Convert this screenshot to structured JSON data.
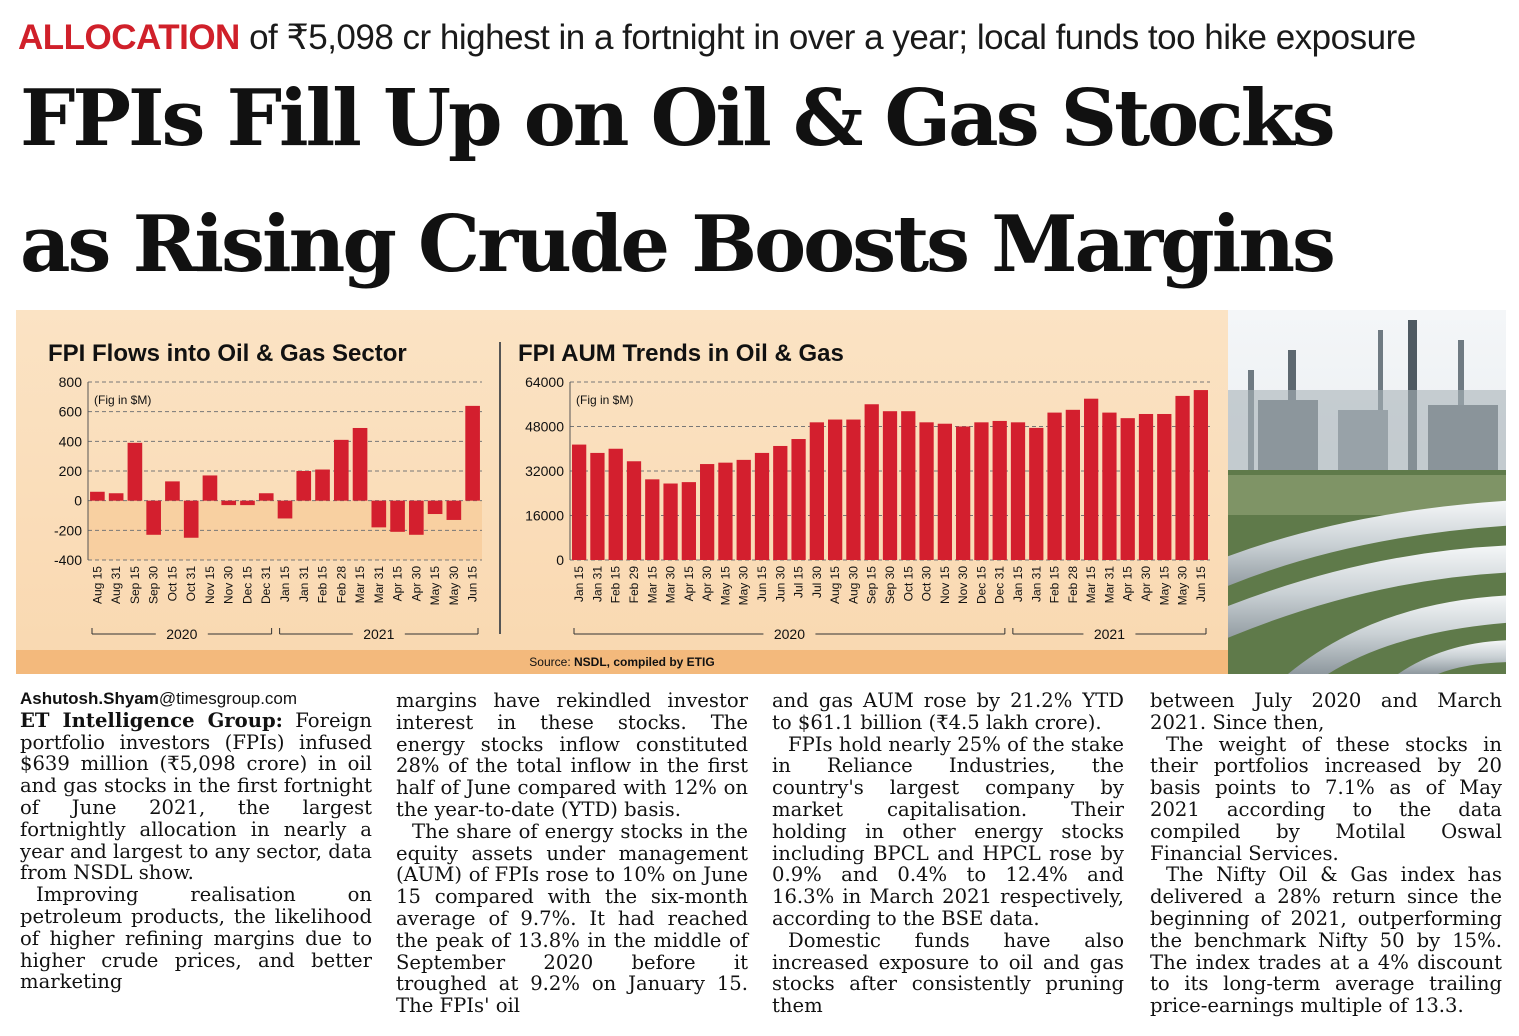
{
  "kicker": {
    "keyword": "ALLOCATION",
    "text": "of ₹5,098 cr highest in a fortnight in over a year; local funds too hike exposure"
  },
  "headline": {
    "line1": "FPIs Fill Up on Oil & Gas Stocks",
    "line2": "as Rising Crude Boosts Margins"
  },
  "colors": {
    "bar": "#d31f2e",
    "kicker": "#d0202a",
    "panel": "#fbe3c4",
    "source_bar": "#f3b97c"
  },
  "chart_data": [
    {
      "type": "bar",
      "title": "FPI Flows into Oil & Gas Sector",
      "unit_note": "(Fig in $M)",
      "categories": [
        "Aug 15",
        "Aug 31",
        "Sep 15",
        "Sep 30",
        "Oct 15",
        "Oct 31",
        "Nov 15",
        "Nov 30",
        "Dec 15",
        "Dec 31",
        "Jan 15",
        "Jan 31",
        "Feb 15",
        "Feb 28",
        "Mar 15",
        "Mar 31",
        "Apr 15",
        "Apr 30",
        "May 15",
        "May 30",
        "Jun 15"
      ],
      "values": [
        60,
        50,
        390,
        -230,
        130,
        -250,
        170,
        -30,
        -30,
        50,
        -120,
        200,
        210,
        410,
        490,
        -180,
        -210,
        -230,
        -90,
        -130,
        639
      ],
      "ylim": [
        -400,
        800
      ],
      "yticks": [
        800,
        600,
        400,
        200,
        0,
        -200,
        -400
      ],
      "ytick_labels": [
        "800",
        "600",
        "400",
        "200",
        "0",
        "-200",
        "-400"
      ],
      "year_groups": [
        {
          "label": "2020",
          "from": 0,
          "to": 9
        },
        {
          "label": "2021",
          "from": 10,
          "to": 20
        }
      ]
    },
    {
      "type": "bar",
      "title": "FPI AUM Trends in Oil & Gas",
      "unit_note": "(Fig in $M)",
      "categories": [
        "Jan 15",
        "Jan 31",
        "Feb 15",
        "Feb 29",
        "Mar 15",
        "Mar 30",
        "Apr 15",
        "Apr 30",
        "May 15",
        "May 30",
        "Jun 15",
        "Jun 30",
        "Jul 15",
        "Jul 30",
        "Aug 15",
        "Aug 30",
        "Sep 15",
        "Sep 30",
        "Oct 15",
        "Oct 30",
        "Nov 15",
        "Nov 30",
        "Dec 15",
        "Dec 31",
        "Jan 15",
        "Jan 31",
        "Feb 15",
        "Feb 28",
        "Mar 15",
        "Mar 31",
        "Apr 15",
        "Apr 30",
        "May 15",
        "May 30",
        "Jun 15"
      ],
      "values": [
        41500,
        38500,
        40000,
        35500,
        29000,
        27500,
        28000,
        34500,
        35000,
        36000,
        38500,
        41000,
        43500,
        49500,
        50500,
        50500,
        56000,
        53500,
        53500,
        49500,
        49000,
        48000,
        49500,
        50000,
        49500,
        47500,
        53000,
        54000,
        58000,
        53000,
        51000,
        52500,
        52500,
        59000,
        61100
      ],
      "ylim": [
        0,
        64000
      ],
      "yticks": [
        64000,
        48000,
        32000,
        16000,
        0
      ],
      "ytick_labels": [
        "64000",
        "48000",
        "32000",
        "16000",
        "0"
      ],
      "year_groups": [
        {
          "label": "2020",
          "from": 0,
          "to": 23
        },
        {
          "label": "2021",
          "from": 24,
          "to": 34
        }
      ]
    }
  ],
  "source": {
    "label": "Source:",
    "text": "NSDL, compiled by ETIG"
  },
  "byline": {
    "name": "Ashutosh.Shyam",
    "domain": "@timesgroup.com"
  },
  "article": {
    "lead_in": "ET Intelligence Group:",
    "p1": "Foreign portfolio investors (FPIs) infused $639 million (₹5,098 crore) in oil and gas stocks in the first fortnight of June 2021, the largest fortnightly allocation in nearly a year and largest to any sector, data from NSDL show.",
    "p2": "Improving realisation on petroleum products, the likelihood of higher refining margins due to higher crude prices, and better marketing",
    "p3": "margins have rekindled investor interest in these stocks. The energy stocks inflow constituted 28% of the total inflow in the first half of June compared with 12% on the year-to-date (YTD) basis.",
    "p4": "The share of energy stocks in the equity assets under management (AUM) of FPIs rose to 10% on June 15 compared with the six-month average of 9.7%. It had reached the peak of 13.8% in the middle of September 2020 before it troughed at 9.2% on January 15. The FPIs' oil",
    "p5": "and gas AUM rose by 21.2% YTD to $61.1 billion (₹4.5 lakh crore).",
    "p6": "FPIs hold nearly 25% of the stake in Reliance Industries, the country's largest company by market capitalisation. Their holding in other energy stocks including BPCL and HPCL rose by 0.9% and 0.4% to 12.4% and 16.3% in March 2021 respectively, according to the BSE data.",
    "p7": "Domestic funds have also increased exposure to oil and gas stocks after consistently pruning them",
    "p8": "between July 2020 and March 2021. Since then,",
    "p9": "The weight of these stocks in their portfolios increased by 20 basis points to 7.1% as of May 2021 according to the data compiled by Motilal Oswal Financial Services.",
    "p10": "The Nifty Oil & Gas index has delivered a 28% return since the beginning of 2021, outperforming the benchmark Nifty 50 by 15%. The index trades at a 4% discount to its long-term average trailing price-earnings multiple of 13.3."
  }
}
